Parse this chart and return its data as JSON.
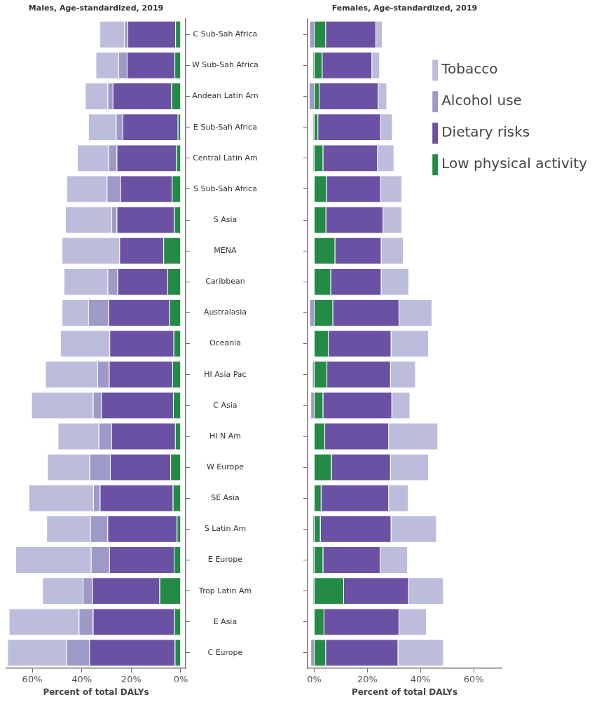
{
  "chart_data": [
    {
      "type": "bar",
      "orientation": "horizontal",
      "stacked": true,
      "title": "Males, Age-standardized, 2019",
      "xlabel": "Percent of total DALYs",
      "categories": [
        "C Sub-Sah Africa",
        "W Sub-Sah Africa",
        "Andean Latin Am",
        "E Sub-Sah Africa",
        "Central Latin Am",
        "S Sub-Sah Africa",
        "S Asia",
        "MENA",
        "Caribbean",
        "Australasia",
        "Oceania",
        "HI Asia Pac",
        "C Asia",
        "HI N Am",
        "W Europe",
        "SE Asia",
        "S Latin Am",
        "E Europe",
        "Trop Latin Am",
        "E Asia",
        "C Europe"
      ],
      "xlim": [
        70.5,
        -2
      ],
      "xticks": [
        {
          "value": 60,
          "label": "60%"
        },
        {
          "value": 40,
          "label": "40%"
        },
        {
          "value": 20,
          "label": "20%"
        },
        {
          "value": 0,
          "label": "0%"
        }
      ],
      "series": [
        {
          "color": "#238b45",
          "values": [
            2.2,
            2.5,
            3.8,
            1.2,
            1.9,
            3.6,
            2.7,
            7.0,
            5.4,
            4.6,
            2.9,
            3.4,
            3.1,
            2.3,
            4.2,
            3.2,
            1.6,
            2.8,
            8.6,
            2.6,
            2.4
          ]
        },
        {
          "color": "#6a51a3",
          "values": [
            19.3,
            19.3,
            23.7,
            22.3,
            24.0,
            20.9,
            23.2,
            17.8,
            20.2,
            24.7,
            25.9,
            25.6,
            29.1,
            25.8,
            24.4,
            29.5,
            28.0,
            26.1,
            27.2,
            32.9,
            34.6
          ]
        },
        {
          "color": "#9e9ac8",
          "values": [
            1.4,
            3.4,
            2.1,
            2.7,
            3.4,
            5.4,
            2.1,
            0,
            4.0,
            8.1,
            0,
            4.7,
            3.3,
            5.1,
            8.3,
            2.7,
            7.0,
            7.4,
            3.8,
            5.7,
            9.2
          ]
        },
        {
          "color": "#bcbddc",
          "values": [
            9.9,
            9.2,
            9.1,
            11.2,
            12.6,
            16.3,
            18.7,
            23.3,
            17.7,
            10.7,
            19.9,
            21.1,
            24.9,
            16.5,
            17.1,
            26.1,
            17.7,
            30.5,
            16.4,
            28.3,
            23.9
          ]
        }
      ]
    },
    {
      "type": "bar",
      "orientation": "horizontal",
      "stacked": true,
      "title": "Females, Age-standardized, 2019",
      "xlabel": "Percent of total DALYs",
      "legend": "top right",
      "tick_labels": "x",
      "categories": [
        null,
        null,
        null,
        null,
        null,
        null,
        null,
        null,
        null,
        null,
        null,
        null,
        null,
        null,
        null,
        null,
        null,
        null,
        null,
        null,
        null
      ],
      "xlim": [
        -2.5,
        70.5
      ],
      "xticks": [
        {
          "value": 0,
          "label": "0%"
        },
        {
          "value": 20,
          "label": "20%"
        },
        {
          "value": 40,
          "label": "40%"
        },
        {
          "value": 60,
          "label": "60%"
        }
      ],
      "series": [
        {
          "name": "Low physical activity",
          "color": "#238b45",
          "values": [
            4.4,
            3.1,
            2.0,
            1.5,
            3.4,
            4.7,
            4.5,
            7.9,
            6.3,
            7.1,
            5.4,
            4.9,
            3.4,
            4.1,
            6.6,
            2.7,
            2.4,
            3.4,
            11.2,
            3.8,
            4.4
          ]
        },
        {
          "name": "Dietary risks",
          "color": "#6a51a3",
          "values": [
            18.9,
            18.7,
            22.2,
            23.6,
            20.5,
            20.4,
            21.5,
            17.4,
            19.0,
            24.9,
            23.6,
            23.9,
            25.9,
            24.0,
            22.2,
            25.4,
            26.6,
            21.5,
            24.4,
            28.2,
            27.2
          ]
        },
        {
          "name": "Alcohol use",
          "color": "#9e9ac8",
          "values": [
            -1.8,
            -0.7,
            -2.0,
            -0.5,
            -0.5,
            0,
            0,
            0,
            0,
            -1.8,
            0,
            -0.8,
            -1.4,
            0,
            0,
            0,
            -0.7,
            -0.7,
            -0.5,
            0,
            -1.4
          ]
        },
        {
          "name": "Tobacco",
          "color": "#bcbddc",
          "values": [
            2.4,
            2.9,
            3.2,
            4.4,
            6.2,
            8.0,
            7.1,
            8.3,
            10.4,
            12.4,
            14.1,
            9.4,
            6.8,
            18.5,
            14.3,
            7.4,
            17.1,
            10.3,
            13.1,
            10.3,
            17.1
          ]
        }
      ]
    }
  ]
}
